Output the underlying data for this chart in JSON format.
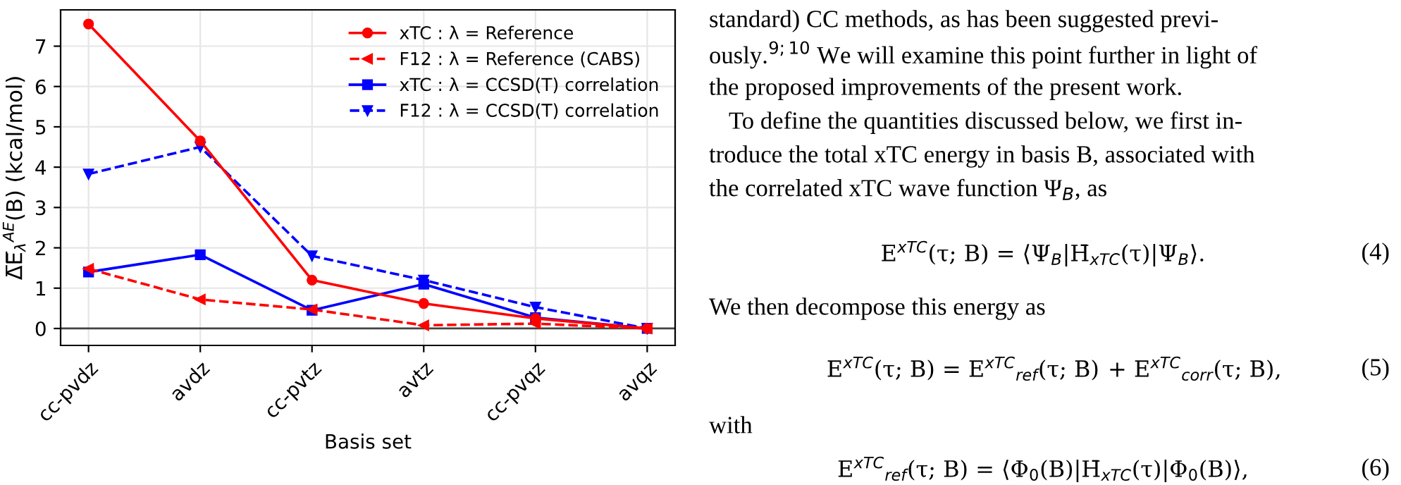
{
  "chart_data": {
    "type": "line",
    "xlabel": "Basis set",
    "ylabel": "Δ̅E̅$_{λ}$$^{AE}$(B) (kcal/mol)",
    "categories": [
      "cc-pvdz",
      "avdz",
      "cc-pvtz",
      "avtz",
      "cc-pvqz",
      "avqz"
    ],
    "series": [
      {
        "name": "xTC : λ = Reference",
        "color": "#ff0000",
        "line_style": "solid",
        "marker": "circle",
        "values": [
          7.55,
          4.65,
          1.2,
          0.62,
          0.25,
          0.0
        ]
      },
      {
        "name": "F12 : λ = Reference (CABS)",
        "color": "#ff0000",
        "line_style": "dashed",
        "marker": "triangle-left",
        "values": [
          1.48,
          0.72,
          0.47,
          0.08,
          0.12,
          0.0
        ]
      },
      {
        "name": "xTC : λ = CCSD(T) correlation",
        "color": "#0000ff",
        "line_style": "solid",
        "marker": "square",
        "values": [
          1.4,
          1.83,
          0.45,
          1.1,
          0.27,
          0.0
        ]
      },
      {
        "name": "F12 : λ = CCSD(T) correlation",
        "color": "#0000ff",
        "line_style": "dashed",
        "marker": "triangle-down",
        "values": [
          3.83,
          4.5,
          1.8,
          1.2,
          0.53,
          0.0
        ]
      }
    ],
    "ylim": [
      -0.42,
      7.9
    ],
    "yticks": [
      0,
      1,
      2,
      3,
      4,
      5,
      6,
      7
    ],
    "grid": true,
    "legend": "top right",
    "ref_lines": [
      {
        "axis": "y",
        "value": 0,
        "color": "#444444",
        "line_style": "solid"
      }
    ],
    "annotations": [
      "standard) CC methods, as has been suggested previ-",
      "ously.$^{9;10}$ We will examine this point further in light of",
      "the proposed improvements of the present work.",
      "To define the quantities discussed below, we first in-",
      "troduce the total xTC energy in basis B, associated with",
      "the correlated xTC wave function Ψ$_{B}$, as",
      "E$^{xTC}$(τ; B) = ⟨Ψ$_{B}$|H̄$_{xTC}$(τ)|Ψ$_{B}$⟩.",
      "(4)",
      "We then decompose this energy as",
      "E$^{xTC}$(τ; B) = E$^{xTC}$$_{ref}$(τ; B)",
      "+ E$^{xTC}$$_{corr}$(τ; B),",
      "(5)",
      "with",
      "E$^{xTC}$$_{ref}$(τ; B) = ⟨Φ$_{0}$(B)|H̄$_{xTC}$(τ)|Φ$_{0}$(B)⟩,",
      "(6)"
    ]
  }
}
